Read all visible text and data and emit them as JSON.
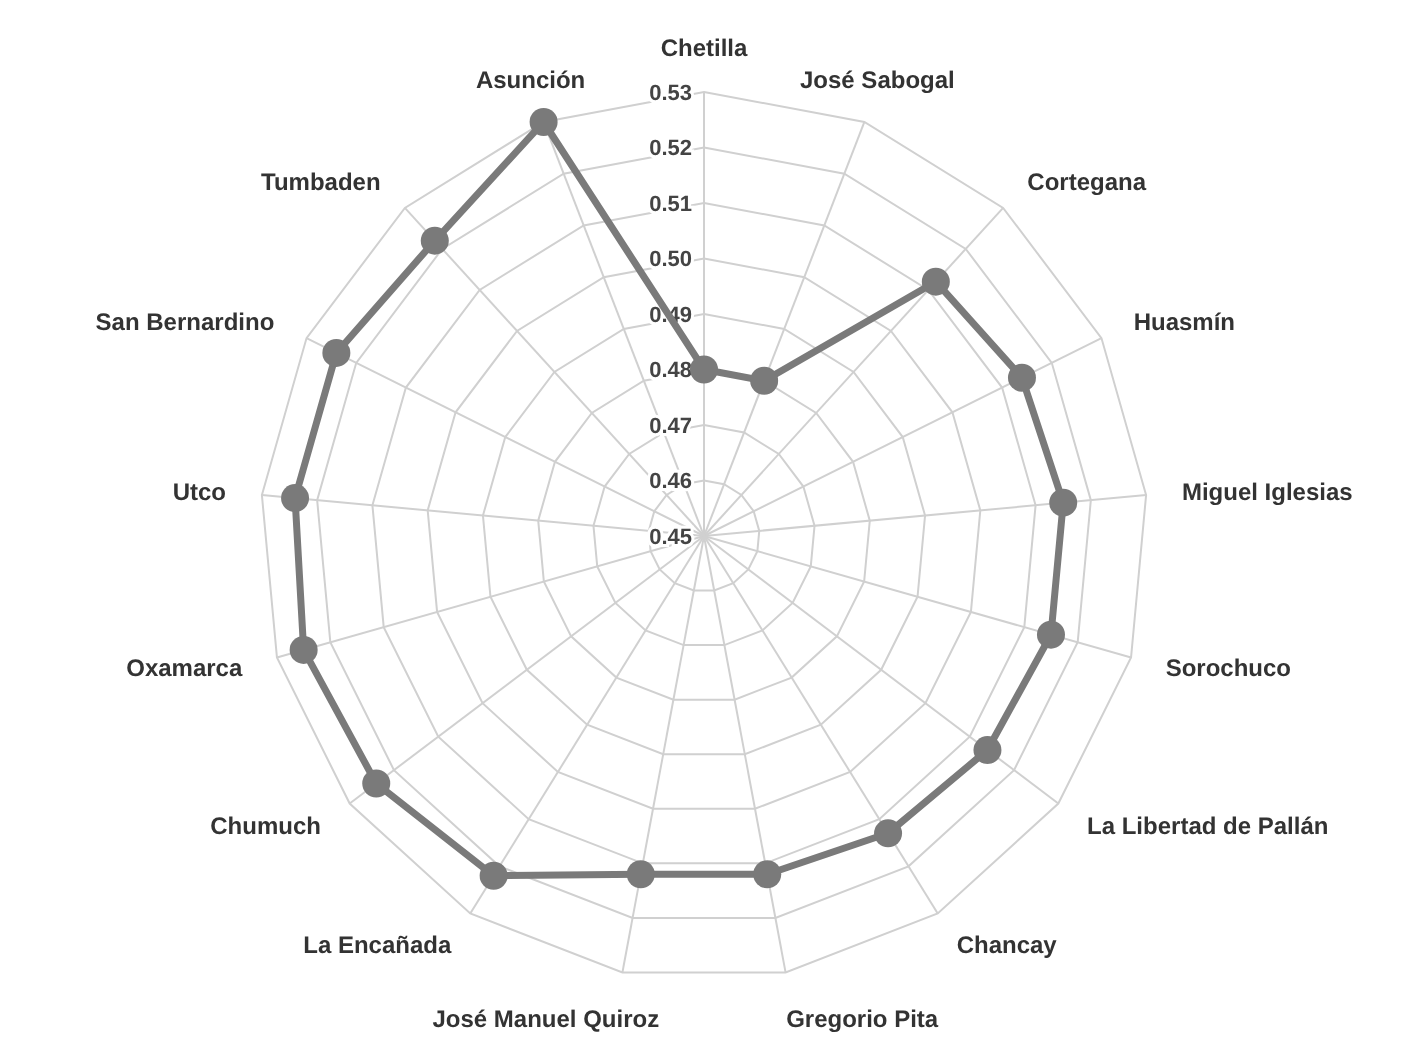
{
  "chart_data": {
    "type": "radar",
    "categories": [
      "Chetilla",
      "José Sabogal",
      "Cortegana",
      "Huasmín",
      "Miguel Iglesias",
      "Sorochuco",
      "La Libertad de Pallán",
      "Chancay",
      "Gregorio Pita",
      "José Manuel Quiroz",
      "La Encañada",
      "Chumuch",
      "Oxamarca",
      "Utco",
      "San Bernardino",
      "Tumbaden",
      "Asunción"
    ],
    "series": [
      {
        "color": "#7a7a7a",
        "values": [
          0.48,
          0.48,
          0.512,
          0.514,
          0.515,
          0.515,
          0.514,
          0.513,
          0.512,
          0.512,
          0.522,
          0.524,
          0.525,
          0.524,
          0.524,
          0.522,
          0.53
        ]
      }
    ],
    "ylim": [
      0.45,
      0.53
    ],
    "yticks": [
      0.45,
      0.46,
      0.47,
      0.48,
      0.49,
      {
        "value": 0.5,
        "label": "0.50"
      },
      0.51,
      0.52,
      0.53
    ],
    "grid": true,
    "marker": "circle"
  }
}
